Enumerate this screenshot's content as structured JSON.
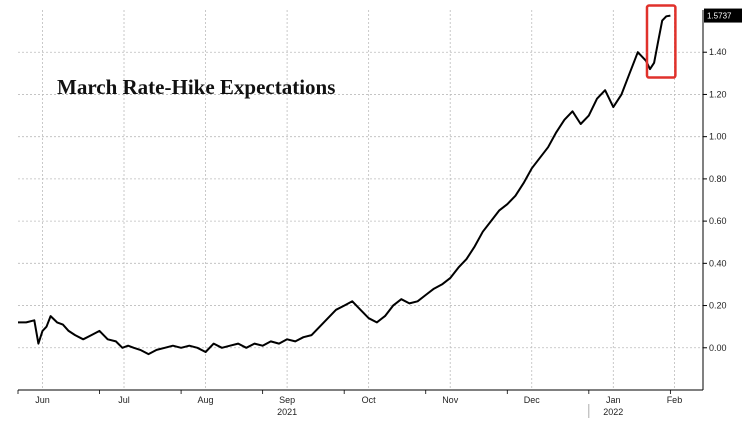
{
  "chart_data": {
    "type": "line",
    "title": "March Rate-Hike Expectations",
    "y_ticks": [
      "0.00",
      "0.20",
      "0.40",
      "0.60",
      "0.80",
      "1.00",
      "1.20",
      "1.40"
    ],
    "ylim": [
      -0.2,
      1.6
    ],
    "x_month_labels": [
      {
        "label": "Jun",
        "x": 0.3
      },
      {
        "label": "Jul",
        "x": 1.3
      },
      {
        "label": "Aug",
        "x": 2.3
      },
      {
        "label": "Sep",
        "x": 3.3
      },
      {
        "label": "Oct",
        "x": 4.3
      },
      {
        "label": "Nov",
        "x": 5.3
      },
      {
        "label": "Dec",
        "x": 6.3
      },
      {
        "label": "Jan",
        "x": 7.3
      },
      {
        "label": "Feb",
        "x": 8.05
      }
    ],
    "x_year_labels": [
      {
        "label": "2021",
        "x": 3.3
      },
      {
        "label": "2022",
        "x": 7.3
      }
    ],
    "xlim": [
      0,
      8.4
    ],
    "last_value_label": "1.5737",
    "colors": {
      "line": "#000000",
      "highlight_box": "#e0312b",
      "grid": "#bcbcbc"
    },
    "series": [
      {
        "x": [
          0,
          0.1,
          0.2,
          0.25,
          0.3,
          0.35,
          0.4,
          0.48,
          0.55,
          0.62,
          0.7,
          0.8,
          0.9,
          1.0,
          1.1,
          1.2,
          1.28,
          1.35,
          1.42,
          1.5,
          1.6,
          1.7,
          1.8,
          1.9,
          2.0,
          2.1,
          2.2,
          2.3,
          2.4,
          2.5,
          2.6,
          2.7,
          2.8,
          2.9,
          3.0,
          3.1,
          3.2,
          3.3,
          3.4,
          3.5,
          3.6,
          3.7,
          3.8,
          3.9,
          4.0,
          4.1,
          4.2,
          4.3,
          4.4,
          4.5,
          4.6,
          4.7,
          4.8,
          4.9,
          5.0,
          5.1,
          5.2,
          5.3,
          5.4,
          5.5,
          5.6,
          5.7,
          5.8,
          5.9,
          6.0,
          6.1,
          6.2,
          6.3,
          6.4,
          6.5,
          6.6,
          6.7,
          6.8,
          6.9,
          7.0,
          7.1,
          7.2,
          7.3,
          7.4,
          7.5,
          7.6,
          7.7,
          7.75,
          7.8,
          7.85,
          7.9,
          7.95,
          8.0
        ],
        "y": [
          0.12,
          0.12,
          0.13,
          0.02,
          0.08,
          0.1,
          0.15,
          0.12,
          0.11,
          0.08,
          0.06,
          0.04,
          0.06,
          0.08,
          0.04,
          0.03,
          0.0,
          0.01,
          0.0,
          -0.01,
          -0.03,
          -0.01,
          0.0,
          0.01,
          0.0,
          0.01,
          0.0,
          -0.02,
          0.02,
          0.0,
          0.01,
          0.02,
          0.0,
          0.02,
          0.01,
          0.03,
          0.02,
          0.04,
          0.03,
          0.05,
          0.06,
          0.1,
          0.14,
          0.18,
          0.2,
          0.22,
          0.18,
          0.14,
          0.12,
          0.15,
          0.2,
          0.23,
          0.21,
          0.22,
          0.25,
          0.28,
          0.3,
          0.33,
          0.38,
          0.42,
          0.48,
          0.55,
          0.6,
          0.65,
          0.68,
          0.72,
          0.78,
          0.85,
          0.9,
          0.95,
          1.02,
          1.08,
          1.12,
          1.06,
          1.1,
          1.18,
          1.22,
          1.14,
          1.2,
          1.3,
          1.4,
          1.36,
          1.32,
          1.35,
          1.45,
          1.55,
          1.57,
          1.5737
        ]
      }
    ]
  }
}
